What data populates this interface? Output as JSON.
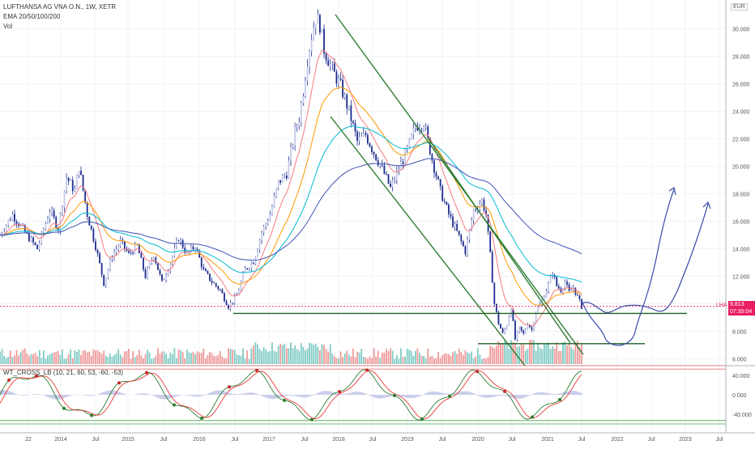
{
  "chart_data": {
    "type": "candlestick",
    "symbol": "LUFTHANSA AG VNA O.N., 1W, XETR",
    "indicator_label": "EMA 20/50/100/200",
    "volume_label": "Vol",
    "currency": "EUR",
    "top_axis_value": "3",
    "price_axis": {
      "ticks": [
        "30.000",
        "28.000",
        "26.000",
        "24.000",
        "22.000",
        "20.000",
        "18.000",
        "16.000",
        "14.000",
        "12.000",
        "10.000",
        "8.000",
        "6.000"
      ],
      "ylim": [
        5.5,
        31.5
      ]
    },
    "last_price_tag": {
      "symbol": "LHA",
      "price": "9.813",
      "countdown": "07:35:04"
    },
    "time_axis": [
      "22",
      "2014",
      "Jul",
      "2015",
      "Jul",
      "2016",
      "Jul",
      "2017",
      "Jul",
      "2018",
      "Jul",
      "2019",
      "Jul",
      "2020",
      "Jul",
      "2021",
      "Jul",
      "2022",
      "Jul",
      "2023",
      "Jul"
    ],
    "indicator_panel": {
      "name": "WT_CROSS_LB (10, 21, 60, 53, -60, -53)",
      "ticks": [
        "40.000",
        "0.000",
        "-40.000"
      ]
    },
    "price_path": [
      [
        0,
        15.0
      ],
      [
        3,
        16.5
      ],
      [
        6,
        15.2
      ],
      [
        9,
        14.0
      ],
      [
        12,
        16.8
      ],
      [
        14,
        15.5
      ],
      [
        16,
        19.2
      ],
      [
        18,
        18.2
      ],
      [
        19,
        20.0
      ],
      [
        21,
        16.5
      ],
      [
        23,
        14.2
      ],
      [
        25,
        11.5
      ],
      [
        27,
        13.5
      ],
      [
        29,
        14.5
      ],
      [
        31,
        13.6
      ],
      [
        33,
        14.2
      ],
      [
        35,
        12.0
      ],
      [
        37,
        13.6
      ],
      [
        39,
        11.5
      ],
      [
        41,
        13.0
      ],
      [
        43,
        14.8
      ],
      [
        45,
        13.6
      ],
      [
        47,
        14.2
      ],
      [
        49,
        12.4
      ],
      [
        51,
        11.6
      ],
      [
        53,
        11.0
      ],
      [
        55,
        9.8
      ],
      [
        57,
        10.6
      ],
      [
        59,
        12.5
      ],
      [
        61,
        13.1
      ],
      [
        63,
        15.2
      ],
      [
        65,
        16.5
      ],
      [
        67,
        18.8
      ],
      [
        69,
        19.5
      ],
      [
        71,
        22.5
      ],
      [
        72,
        23.5
      ],
      [
        73,
        25.5
      ],
      [
        74,
        27.8
      ],
      [
        75,
        29.5
      ],
      [
        76,
        30.8
      ],
      [
        77,
        30.3
      ],
      [
        78,
        28.5
      ],
      [
        80,
        27.0
      ],
      [
        82,
        25.8
      ],
      [
        84,
        24.0
      ],
      [
        86,
        21.8
      ],
      [
        88,
        22.3
      ],
      [
        90,
        21.0
      ],
      [
        92,
        19.8
      ],
      [
        94,
        18.4
      ],
      [
        96,
        19.8
      ],
      [
        98,
        21.2
      ],
      [
        100,
        22.9
      ],
      [
        102,
        23.2
      ],
      [
        104,
        20.5
      ],
      [
        106,
        18.2
      ],
      [
        108,
        16.5
      ],
      [
        110,
        15.2
      ],
      [
        112,
        13.8
      ],
      [
        114,
        16.8
      ],
      [
        116,
        17.5
      ],
      [
        117,
        16.5
      ],
      [
        118,
        13.5
      ],
      [
        119,
        10.0
      ],
      [
        120,
        8.6
      ],
      [
        121,
        7.8
      ],
      [
        122,
        8.5
      ],
      [
        123,
        9.8
      ],
      [
        124,
        7.4
      ],
      [
        125,
        8.2
      ],
      [
        126,
        7.8
      ],
      [
        127,
        8.6
      ],
      [
        128,
        8.1
      ],
      [
        129,
        9.5
      ],
      [
        130,
        9.9
      ],
      [
        131,
        10.7
      ],
      [
        132,
        11.4
      ],
      [
        133,
        12.3
      ],
      [
        134,
        11.3
      ],
      [
        135,
        11.0
      ],
      [
        136,
        11.6
      ],
      [
        137,
        10.8
      ],
      [
        138,
        11.2
      ],
      [
        139,
        10.5
      ],
      [
        140,
        9.8
      ]
    ],
    "ema_periods": [
      20,
      50,
      100,
      200
    ],
    "ema_colors": [
      "#f77c80",
      "#ff9800",
      "#00bcd4",
      "#3f51b5"
    ],
    "trend_lines": [
      {
        "from": [
          "2018 Jan",
          "31.2"
        ],
        "to": [
          "2021 Jul",
          "6.5"
        ]
      },
      {
        "from": [
          "2017 Dec",
          "24.2"
        ],
        "to": [
          "2020 Sep",
          "5.8"
        ]
      },
      {
        "from": [
          "2018 May",
          "27.5"
        ],
        "to": [
          "2021 Apr",
          "6.6"
        ]
      }
    ],
    "support_lines": [
      {
        "price": 9.3,
        "from": "2016 May",
        "to": "2022 Mar"
      },
      {
        "price": 7.1,
        "from": "2020 Apr",
        "to": "2022 Jul"
      }
    ],
    "projections": [
      "drop toward 7.0 then rally to 18.6",
      "bounce near 9.5 then rally to 17.8"
    ],
    "colors": {
      "up": "#26a69a",
      "down": "#ef5350",
      "candle": "#1b2b8f",
      "last": "#e91e63",
      "trend": "#2e7d32",
      "projection": "#3949ab",
      "support": "#1b5e20"
    }
  }
}
